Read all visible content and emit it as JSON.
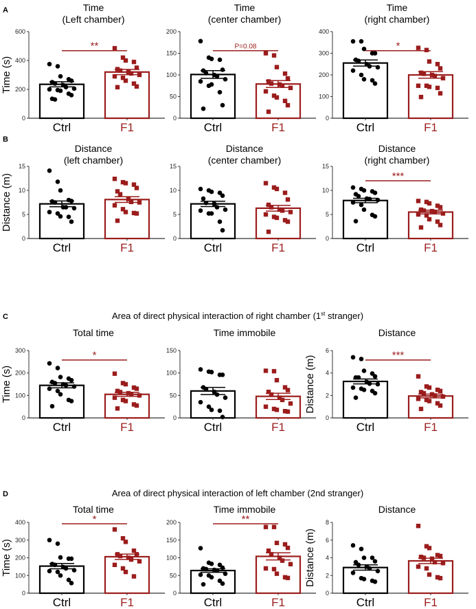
{
  "colors": {
    "ctrl": "#000000",
    "f1": "#9b1c1c"
  },
  "groups": [
    "Ctrl",
    "F1"
  ],
  "chart_data": [
    {
      "type": "bar",
      "panel": "A",
      "row_header": "",
      "title": "Time\n(Left chamber)",
      "ylabel": "Time (s)",
      "ylim": [
        0,
        600
      ],
      "yticks": [
        0,
        200,
        400,
        600
      ],
      "sig": "**",
      "series": [
        {
          "name": "Ctrl",
          "mean": 235,
          "sem": 18,
          "points": [
            375,
            360,
            290,
            270,
            260,
            250,
            240,
            230,
            215,
            205,
            200,
            195,
            190,
            170,
            160,
            135,
            130
          ]
        },
        {
          "name": "F1",
          "mean": 320,
          "sem": 18,
          "points": [
            485,
            420,
            400,
            390,
            350,
            340,
            330,
            320,
            310,
            300,
            290,
            280,
            260,
            240,
            220,
            215
          ]
        }
      ]
    },
    {
      "type": "bar",
      "panel": "",
      "title": "Time\n(center chamber)",
      "ylabel": "",
      "ylim": [
        0,
        200
      ],
      "yticks": [
        0,
        50,
        100,
        150,
        200
      ],
      "sig": "P=0.08",
      "series": [
        {
          "name": "Ctrl",
          "mean": 101,
          "sem": 9,
          "points": [
            178,
            140,
            137,
            135,
            112,
            110,
            104,
            100,
            97,
            90,
            85,
            75,
            78,
            60,
            30,
            22
          ]
        },
        {
          "name": "F1",
          "mean": 79,
          "sem": 8,
          "points": [
            150,
            145,
            118,
            103,
            92,
            85,
            80,
            78,
            75,
            70,
            62,
            52,
            48,
            40,
            30,
            15
          ]
        }
      ]
    },
    {
      "type": "bar",
      "panel": "",
      "title": "Time\n(right chamber)",
      "ylabel": "",
      "ylim": [
        0,
        400
      ],
      "yticks": [
        0,
        100,
        200,
        300,
        400
      ],
      "sig": "*",
      "series": [
        {
          "name": "Ctrl",
          "mean": 255,
          "sem": 14,
          "points": [
            355,
            355,
            320,
            300,
            300,
            270,
            265,
            250,
            240,
            235,
            220,
            200,
            180,
            175,
            160
          ]
        },
        {
          "name": "F1",
          "mean": 200,
          "sem": 15,
          "points": [
            325,
            315,
            262,
            250,
            230,
            210,
            205,
            200,
            195,
            185,
            150,
            150,
            145,
            140,
            115,
            98
          ]
        }
      ]
    },
    {
      "type": "bar",
      "panel": "B",
      "title": "Distance\n(left chamber)",
      "ylabel": "Distance (m)",
      "ylim": [
        0,
        15
      ],
      "yticks": [
        0,
        5,
        10,
        15
      ],
      "sig": "",
      "series": [
        {
          "name": "Ctrl",
          "mean": 7.2,
          "sem": 0.6,
          "points": [
            14.1,
            11.8,
            10,
            8,
            7.8,
            7.7,
            7.5,
            6.5,
            6.5,
            6.3,
            5.5,
            5.2,
            4.6,
            4.5,
            3.5
          ]
        },
        {
          "name": "F1",
          "mean": 8.1,
          "sem": 0.6,
          "points": [
            12.4,
            11.7,
            11.5,
            11.2,
            10.5,
            9.8,
            9.2,
            8.2,
            7.6,
            7.5,
            6.9,
            6.1,
            5.5,
            5.3,
            5.2,
            3.7
          ]
        }
      ]
    },
    {
      "type": "bar",
      "panel": "",
      "title": "Distance\n(center chamber)",
      "ylabel": "",
      "ylim": [
        0,
        15
      ],
      "yticks": [
        0,
        5,
        10,
        15
      ],
      "sig": "",
      "series": [
        {
          "name": "Ctrl",
          "mean": 7.2,
          "sem": 0.55,
          "points": [
            10.3,
            10,
            9.7,
            9.5,
            8.9,
            8.3,
            7.4,
            7.2,
            6.5,
            6,
            5.8,
            5.2,
            5.2,
            3.5,
            1.7
          ]
        },
        {
          "name": "F1",
          "mean": 6.3,
          "sem": 0.6,
          "points": [
            11.5,
            10.6,
            10.3,
            9.5,
            8.1,
            7,
            6.5,
            6,
            5.8,
            5.5,
            5,
            4.5,
            4.3,
            3.8,
            3.5,
            1.4
          ]
        }
      ]
    },
    {
      "type": "bar",
      "panel": "",
      "title": "Distance\n(right chamber)",
      "ylabel": "",
      "ylim": [
        0,
        15
      ],
      "yticks": [
        0,
        5,
        10,
        15
      ],
      "sig": "***",
      "series": [
        {
          "name": "Ctrl",
          "mean": 7.9,
          "sem": 0.45,
          "points": [
            10.6,
            10.3,
            10,
            9.8,
            9.5,
            9.2,
            8.8,
            8.3,
            8.2,
            8.0,
            7.5,
            7.0,
            6.0,
            4.9,
            4.6,
            3.6
          ]
        },
        {
          "name": "F1",
          "mean": 5.5,
          "sem": 0.4,
          "points": [
            7.8,
            7.6,
            7.3,
            6.8,
            6.5,
            6,
            5.8,
            5.7,
            5.5,
            5.2,
            5,
            4.8,
            4,
            3.5,
            2.8,
            2.3
          ]
        }
      ]
    },
    {
      "type": "bar",
      "panel": "C",
      "row_header": "Area of direct physical interaction of right chamber (1|st| stranger)",
      "title": "Total time",
      "ylabel": "Time (s)",
      "ylim": [
        0,
        300
      ],
      "yticks": [
        0,
        100,
        200,
        300
      ],
      "sig": "*",
      "series": [
        {
          "name": "Ctrl",
          "mean": 145,
          "sem": 11,
          "points": [
            243,
            222,
            182,
            175,
            168,
            160,
            155,
            150,
            145,
            140,
            130,
            120,
            105,
            80,
            75,
            52
          ]
        },
        {
          "name": "F1",
          "mean": 105,
          "sem": 9,
          "points": [
            197,
            155,
            150,
            135,
            130,
            120,
            115,
            110,
            105,
            100,
            90,
            80,
            75,
            60,
            55,
            42
          ]
        }
      ]
    },
    {
      "type": "bar",
      "panel": "",
      "title": "Time  immobile",
      "ylabel": "",
      "ylim": [
        0,
        150
      ],
      "yticks": [
        0,
        50,
        100,
        150
      ],
      "sig": "",
      "series": [
        {
          "name": "Ctrl",
          "mean": 60,
          "sem": 8,
          "points": [
            108,
            103,
            102,
            96,
            96,
            68,
            64,
            58,
            52,
            45,
            35,
            25,
            18,
            16,
            2
          ]
        },
        {
          "name": "F1",
          "mean": 48,
          "sem": 7,
          "points": [
            105,
            104,
            84,
            68,
            62,
            58,
            52,
            45,
            40,
            32,
            25,
            20,
            18,
            15,
            14
          ]
        }
      ]
    },
    {
      "type": "bar",
      "panel": "",
      "title": "Distance",
      "ylabel": "Distance (m)",
      "ylim": [
        0,
        6
      ],
      "yticks": [
        0,
        2,
        4,
        6
      ],
      "sig": "***",
      "series": [
        {
          "name": "Ctrl",
          "mean": 3.25,
          "sem": 0.22,
          "points": [
            5.4,
            5.25,
            4.2,
            3.95,
            3.7,
            3.6,
            3.6,
            3.2,
            3.05,
            3.0,
            2.7,
            2.6,
            2.5,
            2.4,
            2.2,
            1.8
          ]
        },
        {
          "name": "F1",
          "mean": 1.95,
          "sem": 0.17,
          "points": [
            3.7,
            2.8,
            2.7,
            2.5,
            2.4,
            2.3,
            2.2,
            2.1,
            2.0,
            1.9,
            1.7,
            1.6,
            1.5,
            1.3,
            1.1,
            0.8
          ]
        }
      ]
    },
    {
      "type": "bar",
      "panel": "D",
      "row_header": "Area of direct physical interaction of left chamber (2nd stranger)",
      "title": "Total time",
      "ylabel": "Time (s)",
      "ylim": [
        0,
        400
      ],
      "yticks": [
        0,
        100,
        200,
        300,
        400
      ],
      "sig": "*",
      "series": [
        {
          "name": "Ctrl",
          "mean": 153,
          "sem": 15,
          "points": [
            300,
            280,
            202,
            195,
            195,
            165,
            160,
            148,
            140,
            130,
            125,
            120,
            100,
            75,
            57
          ]
        },
        {
          "name": "F1",
          "mean": 206,
          "sem": 15,
          "points": [
            360,
            310,
            290,
            240,
            220,
            220,
            210,
            200,
            190,
            180,
            160,
            140,
            120,
            95
          ]
        }
      ]
    },
    {
      "type": "bar",
      "panel": "",
      "title": "Time  immobile",
      "ylabel": "",
      "ylim": [
        0,
        200
      ],
      "yticks": [
        0,
        50,
        100,
        150,
        200
      ],
      "sig": "**",
      "series": [
        {
          "name": "Ctrl",
          "mean": 64,
          "sem": 5,
          "points": [
            127,
            86,
            83,
            80,
            72,
            70,
            68,
            66,
            64,
            55,
            52,
            50,
            45,
            35,
            27,
            25
          ]
        },
        {
          "name": "F1",
          "mean": 104,
          "sem": 10,
          "points": [
            187,
            187,
            142,
            138,
            128,
            120,
            110,
            100,
            92,
            82,
            70,
            68,
            55,
            45,
            43
          ]
        }
      ]
    },
    {
      "type": "bar",
      "panel": "",
      "title": "Distance",
      "ylabel": "Distance (m)",
      "ylim": [
        0,
        8
      ],
      "yticks": [
        0,
        2,
        4,
        6,
        8
      ],
      "sig": "",
      "series": [
        {
          "name": "Ctrl",
          "mean": 2.9,
          "sem": 0.3,
          "points": [
            5.4,
            5.0,
            4.0,
            4.0,
            3.6,
            3.5,
            3.2,
            3.0,
            2.8,
            2.5,
            2.3,
            1.7,
            1.6,
            1.4,
            1.3
          ]
        },
        {
          "name": "F1",
          "mean": 3.65,
          "sem": 0.3,
          "points": [
            7.6,
            5.3,
            5.1,
            4.3,
            4.2,
            4.1,
            4.0,
            3.9,
            3.5,
            3.4,
            3.0,
            2.8,
            2.1,
            1.8,
            1.7
          ]
        }
      ]
    }
  ]
}
